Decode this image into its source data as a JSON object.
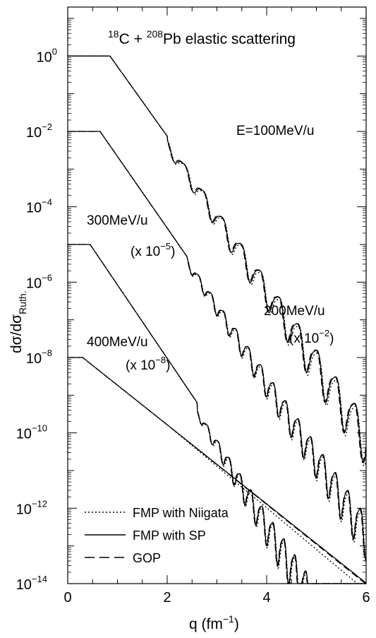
{
  "chart_data": {
    "type": "line",
    "title_parts": {
      "a_sup": "18",
      "a": "C + ",
      "b_sup": "208",
      "b": "Pb elastic scattering"
    },
    "xlabel": {
      "main": "q (fm",
      "sup": "−1",
      "close": ")"
    },
    "ylabel": {
      "main": "dσ/dσ",
      "sub": "Ruth."
    },
    "xlim": [
      0,
      6
    ],
    "ylim_log10": [
      -14,
      1.3
    ],
    "x_ticks": [
      {
        "v": 0,
        "label": "0"
      },
      {
        "v": 2,
        "label": "2"
      },
      {
        "v": 4,
        "label": "4"
      },
      {
        "v": 6,
        "label": "6"
      }
    ],
    "y_ticks": [
      {
        "exp": 0,
        "label": "10",
        "sup": "0"
      },
      {
        "exp": -2,
        "label": "10",
        "sup": "−2"
      },
      {
        "exp": -4,
        "label": "10",
        "sup": "−4"
      },
      {
        "exp": -6,
        "label": "10",
        "sup": "−6"
      },
      {
        "exp": -8,
        "label": "10",
        "sup": "−8"
      },
      {
        "exp": -10,
        "label": "10",
        "sup": "−10"
      },
      {
        "exp": -12,
        "label": "10",
        "sup": "−12"
      },
      {
        "exp": -14,
        "label": "10",
        "sup": "−14"
      }
    ],
    "annotations": {
      "e100": "E=100MeV/u",
      "e300": "300MeV/u",
      "s300": {
        "a": "(x 10",
        "sup": "−5",
        "b": ")"
      },
      "e200": "200MeV/u",
      "s200": {
        "a": "(x 10",
        "sup": "−2",
        "b": ")"
      },
      "e400": "400MeV/u",
      "s400": {
        "a": "(x 10",
        "sup": "−8",
        "b": ")"
      }
    },
    "legend": [
      {
        "label": "FMP with Niigata",
        "style": "dotted"
      },
      {
        "label": "FMP with SP",
        "style": "solid"
      },
      {
        "label": "GOP",
        "style": "dashed"
      }
    ],
    "series": [
      {
        "energy": "100MeV/u",
        "scale_log10": 0,
        "start_log10": 0,
        "plateau_end": 0.85,
        "slope": -1.85,
        "osc_start": 2.0,
        "period": 0.38,
        "amp_start": 0.25,
        "amp_end": 1.1,
        "offset": 0.1
      },
      {
        "energy": "200MeV/u",
        "scale_log10": -2,
        "start_log10": 0,
        "plateau_end": 0.65,
        "slope": -1.9,
        "osc_start": 2.4,
        "period": 0.25,
        "amp_start": 0.2,
        "amp_end": 1.0,
        "offset": 0.05
      },
      {
        "energy": "300MeV/u",
        "scale_log10": -5,
        "start_log10": 0,
        "plateau_end": 0.45,
        "slope": -1.95,
        "osc_start": 2.6,
        "period": 0.22,
        "amp_start": 0.15,
        "amp_end": 1.6,
        "offset": 0.2
      },
      {
        "energy": "400MeV/u",
        "scale_log10": -8,
        "start_log10": 0,
        "plateau_end": 0.3,
        "slope": -1.05,
        "osc_start": 7,
        "period": 0.5,
        "amp_start": 0,
        "amp_end": 0,
        "offset": 0
      }
    ]
  }
}
